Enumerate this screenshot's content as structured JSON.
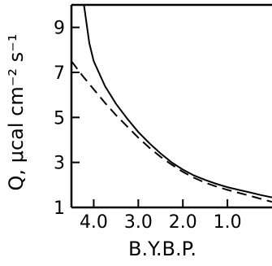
{
  "chart_data": {
    "type": "line",
    "title": "",
    "xlabel": "B.Y.B.P.",
    "ylabel": "Q, μcal cm⁻² s⁻¹",
    "x_reversed": true,
    "xlim": [
      4.5,
      0.0
    ],
    "ylim": [
      1,
      10
    ],
    "x_ticks": [
      4.0,
      3.0,
      2.0,
      1.0
    ],
    "x_tick_labels": [
      "4.0",
      "3.0",
      "2.0",
      "1.0"
    ],
    "y_ticks": [
      1,
      3,
      5,
      7,
      9
    ],
    "y_tick_labels": [
      "1",
      "3",
      "5",
      "7",
      "9"
    ],
    "grid": false,
    "series": [
      {
        "style": "solid",
        "color": "#000000",
        "x": [
          4.22,
          4.1,
          4.0,
          3.75,
          3.5,
          3.25,
          3.0,
          2.75,
          2.5,
          2.25,
          2.0,
          1.75,
          1.5,
          1.25,
          1.0,
          0.75,
          0.5,
          0.25,
          0.0
        ],
        "y": [
          10.0,
          8.3,
          7.5,
          6.4,
          5.6,
          4.95,
          4.35,
          3.85,
          3.4,
          3.0,
          2.68,
          2.42,
          2.22,
          2.05,
          1.9,
          1.78,
          1.67,
          1.55,
          1.45
        ]
      },
      {
        "style": "dashed",
        "color": "#000000",
        "x": [
          4.5,
          4.25,
          4.0,
          3.75,
          3.5,
          3.25,
          3.0,
          2.75,
          2.5,
          2.25,
          2.0,
          1.75,
          1.5,
          1.25,
          1.0,
          0.75,
          0.5,
          0.25,
          0.0
        ],
        "y": [
          7.5,
          6.85,
          6.25,
          5.65,
          5.1,
          4.6,
          4.1,
          3.65,
          3.25,
          2.9,
          2.58,
          2.32,
          2.1,
          1.93,
          1.78,
          1.65,
          1.52,
          1.38,
          1.25
        ]
      }
    ]
  }
}
